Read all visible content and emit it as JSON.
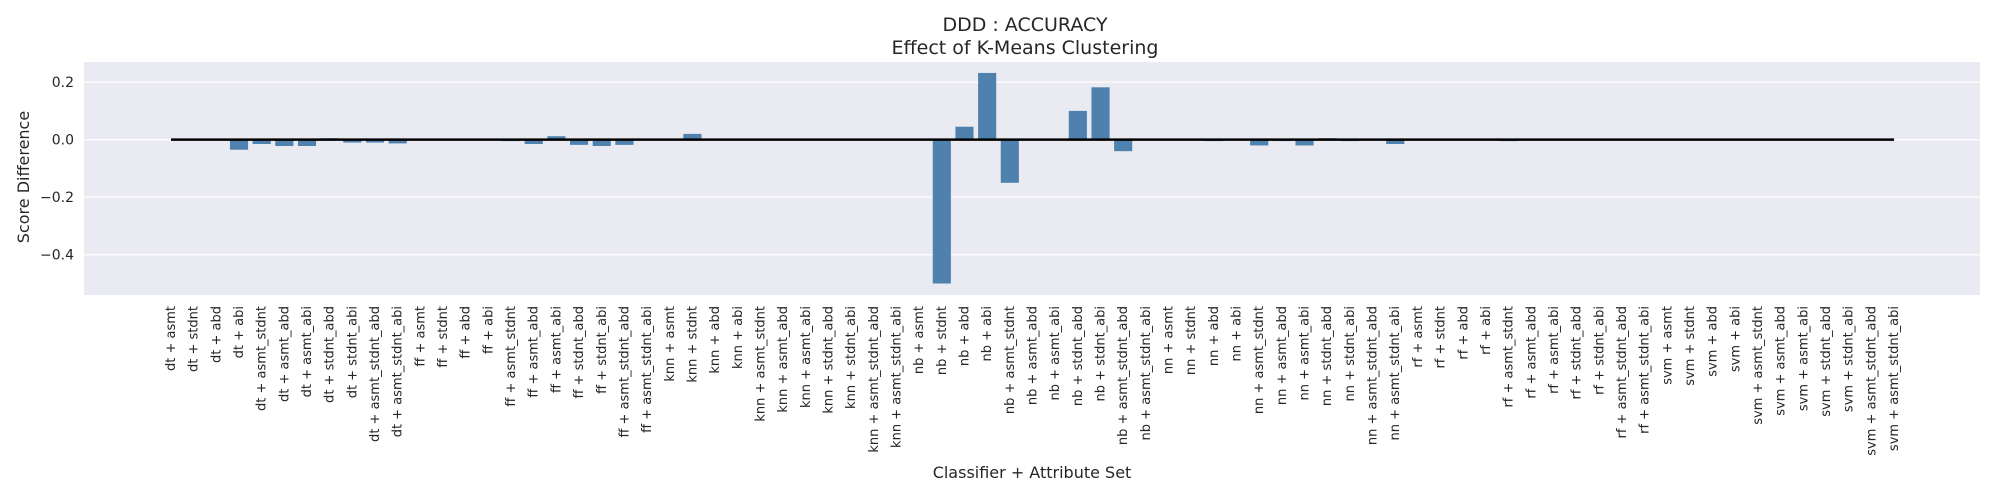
{
  "chart_data": {
    "type": "bar",
    "title": "DDD : ACCURACY",
    "subtitle": "Effect of K-Means Clustering",
    "xlabel": "Classifier + Attribute Set",
    "ylabel": "Score Difference",
    "ylim": [
      -0.54,
      0.27
    ],
    "yticks": [
      0.2,
      0.0,
      -0.2,
      -0.4
    ],
    "ytick_labels": [
      "0.2",
      "0.0",
      "−0.2",
      "−0.4"
    ],
    "grid": true,
    "legend": "none",
    "baseline": 0.0,
    "colors": {
      "bar": "#4e81ad",
      "background": "#eaeaf2",
      "grid": "#ffffff",
      "baseline": "#000000",
      "text": "#262626"
    },
    "categories": [
      "dt + asmt",
      "dt + stdnt",
      "dt + abd",
      "dt + abi",
      "dt + asmt_stdnt",
      "dt + asmt_abd",
      "dt + asmt_abi",
      "dt + stdnt_abd",
      "dt + stdnt_abi",
      "dt + asmt_stdnt_abd",
      "dt + asmt_stdnt_abi",
      "ff + asmt",
      "ff + stdnt",
      "ff + abd",
      "ff + abi",
      "ff + asmt_stdnt",
      "ff + asmt_abd",
      "ff + asmt_abi",
      "ff + stdnt_abd",
      "ff + stdnt_abi",
      "ff + asmt_stdnt_abd",
      "ff + asmt_stdnt_abi",
      "knn + asmt",
      "knn + stdnt",
      "knn + abd",
      "knn + abi",
      "knn + asmt_stdnt",
      "knn + asmt_abd",
      "knn + asmt_abi",
      "knn + stdnt_abd",
      "knn + stdnt_abi",
      "knn + asmt_stdnt_abd",
      "knn + asmt_stdnt_abi",
      "nb + asmt",
      "nb + stdnt",
      "nb + abd",
      "nb + abi",
      "nb + asmt_stdnt",
      "nb + asmt_abd",
      "nb + asmt_abi",
      "nb + stdnt_abd",
      "nb + stdnt_abi",
      "nb + asmt_stdnt_abd",
      "nb + asmt_stdnt_abi",
      "nn + asmt",
      "nn + stdnt",
      "nn + abd",
      "nn + abi",
      "nn + asmt_stdnt",
      "nn + asmt_abd",
      "nn + asmt_abi",
      "nn + stdnt_abd",
      "nn + stdnt_abi",
      "nn + asmt_stdnt_abd",
      "nn + asmt_stdnt_abi",
      "rf + asmt",
      "rf + stdnt",
      "rf + abd",
      "rf + abi",
      "rf + asmt_stdnt",
      "rf + asmt_abd",
      "rf + asmt_abi",
      "rf + stdnt_abd",
      "rf + stdnt_abi",
      "rf + asmt_stdnt_abd",
      "rf + asmt_stdnt_abi",
      "svm + asmt",
      "svm + stdnt",
      "svm + abd",
      "svm + abi",
      "svm + asmt_stdnt",
      "svm + asmt_abd",
      "svm + asmt_abi",
      "svm + stdnt_abd",
      "svm + stdnt_abi",
      "svm + asmt_stdnt_abd",
      "svm + asmt_stdnt_abi"
    ],
    "values": [
      0.0,
      0.0,
      0.0,
      -0.035,
      -0.015,
      -0.022,
      -0.022,
      0.005,
      -0.01,
      -0.01,
      -0.013,
      0.0,
      0.0,
      0.0,
      0.0,
      -0.005,
      -0.015,
      0.012,
      -0.018,
      -0.022,
      -0.018,
      0.0,
      0.0,
      0.02,
      0.0,
      0.0,
      0.0,
      0.0,
      0.0,
      0.0,
      0.0,
      0.0,
      0.0,
      0.0,
      -0.5,
      0.045,
      0.232,
      -0.15,
      0.0,
      0.0,
      0.1,
      0.182,
      -0.04,
      0.0,
      0.0,
      0.0,
      -0.005,
      0.0,
      -0.02,
      -0.005,
      -0.02,
      0.005,
      -0.005,
      0.0,
      -0.015,
      0.0,
      0.0,
      0.0,
      0.0,
      -0.005,
      0.0,
      0.0,
      0.0,
      0.0,
      0.0,
      0.0,
      0.0,
      0.0,
      0.0,
      0.0,
      0.0,
      0.0,
      0.0,
      0.0,
      0.0,
      0.0,
      0.0
    ]
  }
}
